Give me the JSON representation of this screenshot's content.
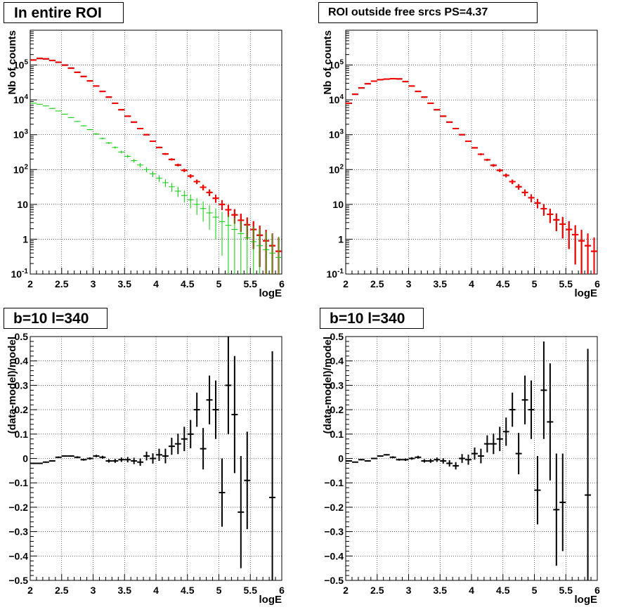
{
  "chart_data": [
    {
      "type": "line",
      "title": "In entire ROI",
      "xlabel": "logE",
      "ylabel": "Nb of counts",
      "xlim": [
        2,
        6
      ],
      "ylim": [
        0.1,
        1000000
      ],
      "yscale": "log",
      "grid": true,
      "x_ticks": [
        "2",
        "2.5",
        "3",
        "3.5",
        "4",
        "4.5",
        "5",
        "5.5",
        "6"
      ],
      "y_ticks": [
        "10-1",
        "1",
        "10",
        "102",
        "103",
        "104",
        "105"
      ],
      "series": [
        {
          "color": "#000000",
          "style": "errorbar",
          "x": [
            2.05,
            2.15,
            2.25,
            2.35,
            2.45,
            2.55,
            2.65,
            2.75,
            2.85,
            2.95,
            3.05,
            3.15,
            3.25,
            3.35,
            3.45,
            3.55,
            3.65,
            3.75,
            3.85,
            3.95,
            4.05,
            4.15,
            4.25,
            4.35,
            4.45,
            4.55,
            4.65,
            4.75,
            4.85,
            4.95,
            5.05,
            5.15,
            5.25,
            5.35,
            5.45,
            5.55,
            5.65,
            5.75,
            5.85,
            5.95
          ],
          "values": [
            140000,
            155000,
            150000,
            135000,
            120000,
            100000,
            82000,
            62000,
            47000,
            35000,
            25000,
            17500,
            12000,
            8000,
            5200,
            3400,
            2300,
            1500,
            1000,
            650,
            430,
            280,
            195,
            135,
            95,
            65,
            45,
            31,
            22,
            15,
            10,
            7,
            5,
            3.5,
            2.6,
            1.9,
            1.3,
            0.9,
            0.65,
            0.45
          ]
        },
        {
          "color": "#ff0000",
          "style": "errorbar",
          "x": [
            2.05,
            2.15,
            2.25,
            2.35,
            2.45,
            2.55,
            2.65,
            2.75,
            2.85,
            2.95,
            3.05,
            3.15,
            3.25,
            3.35,
            3.45,
            3.55,
            3.65,
            3.75,
            3.85,
            3.95,
            4.05,
            4.15,
            4.25,
            4.35,
            4.45,
            4.55,
            4.65,
            4.75,
            4.85,
            4.95,
            5.05,
            5.15,
            5.25,
            5.35,
            5.45,
            5.55,
            5.65,
            5.75,
            5.85,
            5.95
          ],
          "values": [
            139000,
            154000,
            151000,
            136000,
            121000,
            99000,
            81000,
            62000,
            47000,
            35000,
            25000,
            17500,
            12000,
            8000,
            5200,
            3400,
            2300,
            1500,
            1000,
            650,
            430,
            280,
            195,
            135,
            95,
            65,
            45,
            31,
            22,
            15,
            10,
            7,
            5,
            3.5,
            2.6,
            1.9,
            1.3,
            0.9,
            0.65,
            0.45
          ]
        },
        {
          "color": "#00cc00",
          "style": "errorbar",
          "x": [
            2.05,
            2.15,
            2.25,
            2.35,
            2.45,
            2.55,
            2.65,
            2.75,
            2.85,
            2.95,
            3.05,
            3.15,
            3.25,
            3.35,
            3.45,
            3.55,
            3.65,
            3.75,
            3.85,
            3.95,
            4.05,
            4.15,
            4.25,
            4.35,
            4.45,
            4.55,
            4.65,
            4.75,
            4.85,
            4.95,
            5.05,
            5.15,
            5.25,
            5.35,
            5.45,
            5.55,
            5.65,
            5.75,
            5.85,
            5.95
          ],
          "values": [
            8000,
            7500,
            6700,
            5700,
            4800,
            3900,
            3100,
            2400,
            1800,
            1400,
            1050,
            780,
            580,
            430,
            320,
            240,
            180,
            135,
            100,
            75,
            56,
            42,
            32,
            24,
            18,
            13.5,
            10,
            7.6,
            5.7,
            4.3,
            3.2,
            2.5,
            1.9,
            1.45,
            1.1,
            0.85,
            0.65,
            0.5,
            0.4,
            0.3
          ]
        }
      ]
    },
    {
      "type": "line",
      "title": "ROI outside free srcs PS=4.37",
      "xlabel": "logE",
      "ylabel": "Nb of counts",
      "xlim": [
        2,
        6
      ],
      "ylim": [
        0.1,
        1000000
      ],
      "yscale": "log",
      "grid": true,
      "x_ticks": [
        "2",
        "2.5",
        "3",
        "3.5",
        "4",
        "4.5",
        "5",
        "5.5",
        "6"
      ],
      "y_ticks": [
        "10-1",
        "1",
        "10",
        "102",
        "103",
        "104",
        "105"
      ],
      "series": [
        {
          "color": "#000000",
          "style": "errorbar",
          "x": [
            2.05,
            2.15,
            2.25,
            2.35,
            2.45,
            2.55,
            2.65,
            2.75,
            2.85,
            2.95,
            3.05,
            3.15,
            3.25,
            3.35,
            3.45,
            3.55,
            3.65,
            3.75,
            3.85,
            3.95,
            4.05,
            4.15,
            4.25,
            4.35,
            4.45,
            4.55,
            4.65,
            4.75,
            4.85,
            4.95,
            5.05,
            5.15,
            5.25,
            5.35,
            5.45,
            5.55,
            5.65,
            5.75,
            5.85,
            5.95
          ],
          "values": [
            8000,
            14500,
            22000,
            29000,
            34500,
            38000,
            39500,
            40500,
            40000,
            33500,
            25000,
            17500,
            12000,
            8000,
            5200,
            3400,
            2300,
            1500,
            1000,
            650,
            420,
            275,
            190,
            132,
            95,
            68,
            45,
            32,
            22,
            15.5,
            11,
            7.5,
            5.2,
            3.6,
            2.7,
            1.9,
            1.35,
            0.9,
            0.65,
            0.45
          ]
        },
        {
          "color": "#ff0000",
          "style": "errorbar",
          "x": [
            2.05,
            2.15,
            2.25,
            2.35,
            2.45,
            2.55,
            2.65,
            2.75,
            2.85,
            2.95,
            3.05,
            3.15,
            3.25,
            3.35,
            3.45,
            3.55,
            3.65,
            3.75,
            3.85,
            3.95,
            4.05,
            4.15,
            4.25,
            4.35,
            4.45,
            4.55,
            4.65,
            4.75,
            4.85,
            4.95,
            5.05,
            5.15,
            5.25,
            5.35,
            5.45,
            5.55,
            5.65,
            5.75,
            5.85,
            5.95
          ],
          "values": [
            8000,
            14500,
            22000,
            29000,
            34500,
            38000,
            39500,
            40500,
            40000,
            33500,
            25000,
            17500,
            12000,
            8000,
            5200,
            3400,
            2300,
            1500,
            1000,
            650,
            420,
            275,
            190,
            132,
            95,
            68,
            45,
            32,
            22,
            15.5,
            11,
            7.5,
            5.2,
            3.6,
            2.7,
            1.9,
            1.35,
            0.9,
            0.65,
            0.45
          ]
        }
      ]
    },
    {
      "type": "scatter",
      "title": "b=10 l=340",
      "xlabel": "logE",
      "ylabel": "(data-model)/model",
      "xlim": [
        2,
        6
      ],
      "ylim": [
        -0.5,
        0.5
      ],
      "grid": true,
      "x_ticks": [
        "2",
        "2.5",
        "3",
        "3.5",
        "4",
        "4.5",
        "5",
        "5.5",
        "6"
      ],
      "y_ticks": [
        "−0.5",
        "−0.4",
        "−0.3",
        "−0.2",
        "−0.1",
        "0",
        "0.1",
        "0.2",
        "0.3",
        "0.4",
        "0.5"
      ],
      "series": [
        {
          "color": "#000000",
          "style": "errorbar",
          "x": [
            2.05,
            2.15,
            2.25,
            2.35,
            2.45,
            2.55,
            2.65,
            2.75,
            2.85,
            2.95,
            3.05,
            3.15,
            3.25,
            3.35,
            3.45,
            3.55,
            3.65,
            3.75,
            3.85,
            3.95,
            4.05,
            4.15,
            4.25,
            4.35,
            4.45,
            4.55,
            4.65,
            4.75,
            4.85,
            4.95,
            5.05,
            5.15,
            5.25,
            5.35,
            5.45,
            5.85
          ],
          "values": [
            -0.02,
            -0.02,
            -0.015,
            -0.01,
            0.005,
            0.01,
            0.01,
            0.005,
            -0.005,
            0.0,
            0.01,
            0.005,
            -0.01,
            -0.01,
            -0.005,
            -0.005,
            -0.01,
            -0.015,
            0.01,
            0.0,
            0.015,
            0.01,
            0.05,
            0.06,
            0.08,
            0.1,
            0.2,
            0.04,
            0.24,
            0.2,
            -0.14,
            0.3,
            0.18,
            -0.22,
            -0.09,
            -0.16
          ],
          "errors": [
            0.002,
            0.002,
            0.003,
            0.003,
            0.003,
            0.003,
            0.003,
            0.004,
            0.004,
            0.005,
            0.005,
            0.006,
            0.007,
            0.008,
            0.009,
            0.011,
            0.013,
            0.015,
            0.018,
            0.021,
            0.025,
            0.03,
            0.035,
            0.042,
            0.05,
            0.058,
            0.07,
            0.085,
            0.1,
            0.12,
            0.14,
            0.2,
            0.24,
            0.23,
            0.2,
            0.6
          ]
        }
      ]
    },
    {
      "type": "scatter",
      "title": "b=10 l=340",
      "xlabel": "logE",
      "ylabel": "(data-model)/model",
      "xlim": [
        2,
        6
      ],
      "ylim": [
        -0.5,
        0.5
      ],
      "grid": true,
      "x_ticks": [
        "2",
        "2.5",
        "3",
        "3.5",
        "4",
        "4.5",
        "5",
        "5.5",
        "6"
      ],
      "y_ticks": [
        "−0.5",
        "−0.4",
        "−0.3",
        "−0.2",
        "−0.1",
        "0",
        "0.1",
        "0.2",
        "0.3",
        "0.4",
        "0.5"
      ],
      "series": [
        {
          "color": "#000000",
          "style": "errorbar",
          "x": [
            2.05,
            2.15,
            2.25,
            2.35,
            2.45,
            2.55,
            2.65,
            2.75,
            2.85,
            2.95,
            3.05,
            3.15,
            3.25,
            3.35,
            3.45,
            3.55,
            3.65,
            3.75,
            3.85,
            3.95,
            4.05,
            4.15,
            4.25,
            4.35,
            4.45,
            4.55,
            4.65,
            4.75,
            4.85,
            4.95,
            5.05,
            5.15,
            5.25,
            5.35,
            5.45,
            5.85
          ],
          "values": [
            -0.01,
            -0.015,
            -0.005,
            -0.01,
            0.0,
            0.01,
            0.015,
            0.005,
            -0.005,
            -0.005,
            0.0,
            0.005,
            -0.01,
            -0.01,
            -0.005,
            -0.01,
            -0.02,
            -0.03,
            0.0,
            -0.005,
            0.02,
            0.01,
            0.06,
            0.06,
            0.08,
            0.11,
            0.2,
            0.02,
            0.24,
            0.2,
            -0.13,
            0.28,
            0.15,
            -0.21,
            -0.18,
            -0.15
          ],
          "errors": [
            0.002,
            0.002,
            0.003,
            0.003,
            0.003,
            0.003,
            0.003,
            0.004,
            0.004,
            0.005,
            0.005,
            0.006,
            0.007,
            0.008,
            0.009,
            0.011,
            0.013,
            0.015,
            0.018,
            0.021,
            0.025,
            0.03,
            0.035,
            0.042,
            0.05,
            0.058,
            0.07,
            0.085,
            0.1,
            0.12,
            0.14,
            0.2,
            0.24,
            0.23,
            0.2,
            0.6
          ]
        }
      ]
    }
  ]
}
